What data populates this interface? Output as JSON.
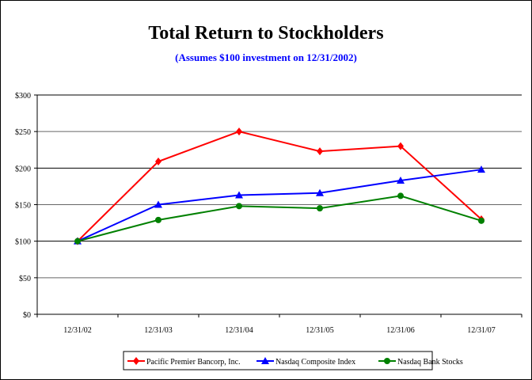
{
  "chart_data": {
    "type": "line",
    "title": "Total Return to Stockholders",
    "subtitle": "(Assumes $100 investment on 12/31/2002)",
    "categories": [
      "12/31/02",
      "12/31/03",
      "12/31/04",
      "12/31/05",
      "12/31/06",
      "12/31/07"
    ],
    "yticks": [
      "$0",
      "$50",
      "$100",
      "$150",
      "$200",
      "$250",
      "$300"
    ],
    "ylim": [
      0,
      300
    ],
    "grid": true,
    "legend": "bottom",
    "series": [
      {
        "name": "Pacific Premier Bancorp, Inc.",
        "color": "#ff0000",
        "marker": "diamond",
        "values": [
          100,
          209,
          250,
          223,
          230,
          130
        ]
      },
      {
        "name": "Nasdaq Composite Index",
        "color": "#0000ff",
        "marker": "triangle",
        "values": [
          100,
          150,
          163,
          166,
          183,
          198
        ]
      },
      {
        "name": "Nasdaq Bank Stocks",
        "color": "#008000",
        "marker": "circle",
        "values": [
          100,
          129,
          148,
          145,
          162,
          128
        ]
      }
    ]
  }
}
